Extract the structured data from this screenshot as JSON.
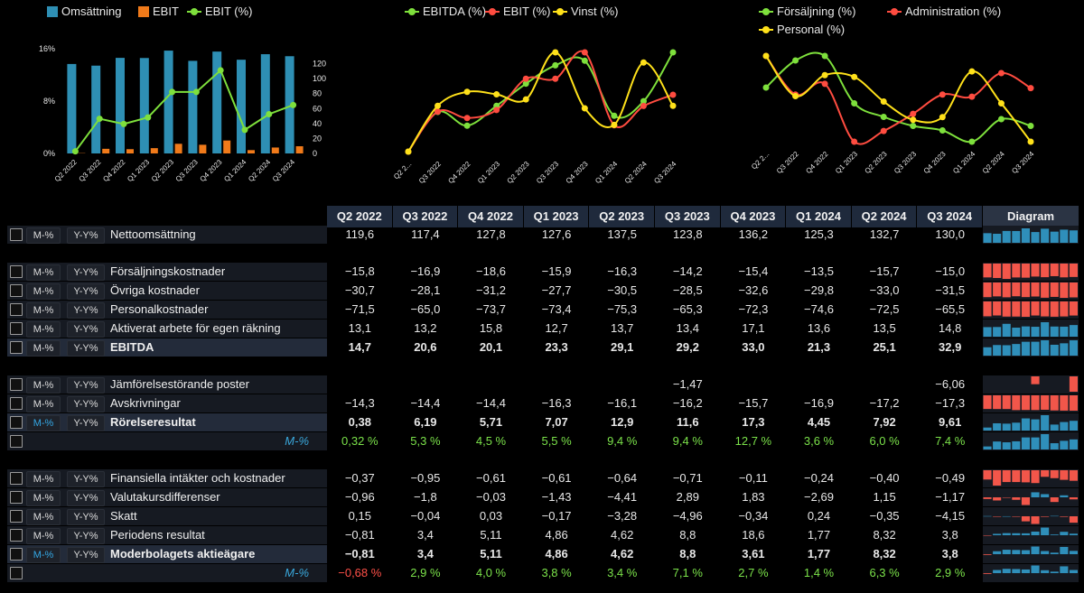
{
  "colors": {
    "blue": "#2e8fb4",
    "orange": "#f07a1a",
    "green": "#7ee03c",
    "red": "#ff4c40",
    "yellow": "#ffe11a",
    "bg": "#000000"
  },
  "chart_data": [
    {
      "type": "bar",
      "title": "",
      "categories": [
        "Q2 2022",
        "Q3 2022",
        "Q4 2022",
        "Q1 2023",
        "Q2 2023",
        "Q3 2023",
        "Q4 2023",
        "Q1 2024",
        "Q2 2024",
        "Q3 2024"
      ],
      "series": [
        {
          "name": "Omsättning",
          "axis": "right",
          "values": [
            119.6,
            117.4,
            127.8,
            127.6,
            137.5,
            123.8,
            136.2,
            125.3,
            132.7,
            130.0
          ]
        },
        {
          "name": "EBIT",
          "axis": "right",
          "values": [
            0.38,
            6.19,
            5.71,
            7.07,
            12.9,
            11.6,
            17.3,
            4.45,
            7.92,
            9.61
          ]
        },
        {
          "name": "EBIT (%)",
          "type": "line",
          "axis": "left",
          "values": [
            0.32,
            5.3,
            4.5,
            5.5,
            9.4,
            9.4,
            12.7,
            3.6,
            6.0,
            7.4
          ]
        }
      ],
      "y_left_ticks": [
        "0%",
        "8%",
        "16%"
      ],
      "y_left_range": [
        0,
        16
      ],
      "y_right_ticks": [
        "0",
        "20",
        "40",
        "60",
        "80",
        "100",
        "120"
      ],
      "y_right_range": [
        0,
        140
      ]
    },
    {
      "type": "line",
      "title": "",
      "categories": [
        "Q2 2022",
        "Q3 2022",
        "Q4 2022",
        "Q1 2023",
        "Q2 2023",
        "Q3 2023",
        "Q4 2023",
        "Q1 2024",
        "Q2 2024",
        "Q3 2024"
      ],
      "series": [
        {
          "name": "EBITDA (%)",
          "values": [
            12.3,
            17.5,
            15.7,
            18.3,
            21.2,
            23.6,
            24.2,
            17.0,
            18.9,
            25.3
          ]
        },
        {
          "name": "EBIT (%)",
          "values": [
            0.3,
            5.3,
            4.5,
            5.5,
            9.4,
            9.4,
            12.7,
            3.6,
            6.0,
            7.4
          ]
        },
        {
          "name": "Vinst (%)",
          "values": [
            -0.7,
            2.9,
            4.0,
            3.8,
            3.4,
            7.1,
            2.7,
            1.4,
            6.3,
            2.9
          ]
        }
      ]
    },
    {
      "type": "line",
      "title": "",
      "categories": [
        "Q2 2022",
        "Q3 2022",
        "Q4 2022",
        "Q1 2023",
        "Q2 2023",
        "Q3 2023",
        "Q4 2023",
        "Q1 2024",
        "Q2 2024",
        "Q3 2024"
      ],
      "series": [
        {
          "name": "Försäljning (%)",
          "values": [
            13.2,
            14.4,
            14.6,
            12.5,
            11.9,
            11.5,
            11.3,
            10.8,
            11.8,
            11.5
          ]
        },
        {
          "name": "Administration (%)",
          "values": [
            25.7,
            23.9,
            24.4,
            21.7,
            22.2,
            23.0,
            23.9,
            23.8,
            24.9,
            24.2
          ]
        },
        {
          "name": "Personal (%)",
          "values": [
            59.8,
            55.4,
            57.7,
            57.5,
            54.8,
            52.8,
            53.1,
            58.1,
            54.6,
            50.4
          ]
        }
      ]
    }
  ],
  "legends": {
    "chart1": [
      "Omsättning",
      "EBIT",
      "EBIT (%)"
    ],
    "chart2": [
      "EBITDA (%)",
      "EBIT (%)",
      "Vinst (%)"
    ],
    "chart3": [
      "Försäljning (%)",
      "Administration (%)",
      "Personal (%)"
    ]
  },
  "chart_x_labels": {
    "chart1": [
      "Q2 2022",
      "Q3 2022",
      "Q4 2022",
      "Q1 2023",
      "Q2 2023",
      "Q3 2023",
      "Q4 2023",
      "Q1 2024",
      "Q2 2024",
      "Q3 2024"
    ],
    "chart2": [
      "Q2 2...",
      "Q3 2022",
      "Q4 2022",
      "Q1 2023",
      "Q2 2023",
      "Q3 2023",
      "Q4 2023",
      "Q1 2024",
      "Q2 2024",
      "Q3 2024"
    ],
    "chart3": [
      "Q2 2...",
      "Q3 2022",
      "Q4 2022",
      "Q1 2023",
      "Q2 2023",
      "Q3 2023",
      "Q4 2023",
      "Q1 2024",
      "Q2 2024",
      "Q3 2024"
    ]
  },
  "table": {
    "headers": [
      "Q2 2022",
      "Q3 2022",
      "Q4 2022",
      "Q1 2023",
      "Q2 2023",
      "Q3 2023",
      "Q4 2023",
      "Q1 2024",
      "Q2 2024",
      "Q3 2024"
    ],
    "diagram_header": "Diagram",
    "m_label": "M-%",
    "y_label": "Y-Y%",
    "rows": [
      {
        "name": "Nettoomsättning",
        "bold": false,
        "kind": "data",
        "values": [
          "119,6",
          "117,4",
          "127,8",
          "127,6",
          "137,5",
          "123,8",
          "136,2",
          "125,3",
          "132,7",
          "130,0"
        ],
        "num": [
          119.6,
          117.4,
          127.8,
          127.6,
          137.5,
          123.8,
          136.2,
          125.3,
          132.7,
          130.0
        ]
      },
      {
        "kind": "gap"
      },
      {
        "name": "Försäljningskostnader",
        "bold": false,
        "kind": "data",
        "values": [
          "−15,8",
          "−16,9",
          "−18,6",
          "−15,9",
          "−16,3",
          "−14,2",
          "−15,4",
          "−13,5",
          "−15,7",
          "−15,0"
        ],
        "num": [
          -15.8,
          -16.9,
          -18.6,
          -15.9,
          -16.3,
          -14.2,
          -15.4,
          -13.5,
          -15.7,
          -15.0
        ]
      },
      {
        "name": "Övriga kostnader",
        "bold": false,
        "kind": "data",
        "values": [
          "−30,7",
          "−28,1",
          "−31,2",
          "−27,7",
          "−30,5",
          "−28,5",
          "−32,6",
          "−29,8",
          "−33,0",
          "−31,5"
        ],
        "num": [
          -30.7,
          -28.1,
          -31.2,
          -27.7,
          -30.5,
          -28.5,
          -32.6,
          -29.8,
          -33.0,
          -31.5
        ]
      },
      {
        "name": "Personalkostnader",
        "bold": false,
        "kind": "data",
        "values": [
          "−71,5",
          "−65,0",
          "−73,7",
          "−73,4",
          "−75,3",
          "−65,3",
          "−72,3",
          "−74,6",
          "−72,5",
          "−65,5"
        ],
        "num": [
          -71.5,
          -65.0,
          -73.7,
          -73.4,
          -75.3,
          -65.3,
          -72.3,
          -74.6,
          -72.5,
          -65.5
        ]
      },
      {
        "name": "Aktiverat arbete för egen räkning",
        "bold": false,
        "kind": "data",
        "values": [
          "13,1",
          "13,2",
          "15,8",
          "12,7",
          "13,7",
          "13,4",
          "17,1",
          "13,6",
          "13,5",
          "14,8"
        ],
        "num": [
          13.1,
          13.2,
          15.8,
          12.7,
          13.7,
          13.4,
          17.1,
          13.6,
          13.5,
          14.8
        ]
      },
      {
        "name": "EBITDA",
        "bold": true,
        "kind": "data",
        "values": [
          "14,7",
          "20,6",
          "20,1",
          "23,3",
          "29,1",
          "29,2",
          "33,0",
          "21,3",
          "25,1",
          "32,9"
        ],
        "num": [
          14.7,
          20.6,
          20.1,
          23.3,
          29.1,
          29.2,
          33.0,
          21.3,
          25.1,
          32.9
        ]
      },
      {
        "kind": "gap"
      },
      {
        "name": "Jämförelsestörande poster",
        "bold": false,
        "kind": "data",
        "values": [
          "",
          "",
          "",
          "",
          "",
          "−1,47",
          "",
          "",
          "",
          "−6,06"
        ],
        "num": [
          0,
          0,
          0,
          0,
          0,
          -1.47,
          0,
          0,
          0,
          -6.06
        ]
      },
      {
        "name": "Avskrivningar",
        "bold": false,
        "kind": "data",
        "values": [
          "−14,3",
          "−14,4",
          "−14,4",
          "−16,3",
          "−16,1",
          "−16,2",
          "−15,7",
          "−16,9",
          "−17,2",
          "−17,3"
        ],
        "num": [
          -14.3,
          -14.4,
          -14.4,
          -16.3,
          -16.1,
          -16.2,
          -15.7,
          -16.9,
          -17.2,
          -17.3
        ]
      },
      {
        "name": "Rörelseresultat",
        "bold": true,
        "mblue": true,
        "kind": "data",
        "values": [
          "0,38",
          "6,19",
          "5,71",
          "7,07",
          "12,9",
          "11,6",
          "17,3",
          "4,45",
          "7,92",
          "9,61"
        ],
        "num": [
          0.38,
          6.19,
          5.71,
          7.07,
          12.9,
          11.6,
          17.3,
          4.45,
          7.92,
          9.61
        ]
      },
      {
        "name": "M-%",
        "kind": "pct",
        "values": [
          "0,32 %",
          "5,3 %",
          "4,5 %",
          "5,5 %",
          "9,4 %",
          "9,4 %",
          "12,7 %",
          "3,6 %",
          "6,0 %",
          "7,4 %"
        ],
        "num": [
          0.32,
          5.3,
          4.5,
          5.5,
          9.4,
          9.4,
          12.7,
          3.6,
          6.0,
          7.4
        ]
      },
      {
        "kind": "gap"
      },
      {
        "name": "Finansiella intäkter och kostnader",
        "bold": false,
        "kind": "data",
        "values": [
          "−0,37",
          "−0,95",
          "−0,61",
          "−0,61",
          "−0,64",
          "−0,71",
          "−0,11",
          "−0,24",
          "−0,40",
          "−0,49"
        ],
        "num": [
          -0.37,
          -0.95,
          -0.61,
          -0.61,
          -0.64,
          -0.71,
          -0.11,
          -0.24,
          -0.4,
          -0.49
        ]
      },
      {
        "name": "Valutakursdifferenser",
        "bold": false,
        "kind": "data",
        "values": [
          "−0,96",
          "−1,8",
          "−0,03",
          "−1,43",
          "−4,41",
          "2,89",
          "1,83",
          "−2,69",
          "1,15",
          "−1,17"
        ],
        "num": [
          -0.96,
          -1.8,
          -0.03,
          -1.43,
          -4.41,
          2.89,
          1.83,
          -2.69,
          1.15,
          -1.17
        ]
      },
      {
        "name": "Skatt",
        "bold": false,
        "kind": "data",
        "values": [
          "0,15",
          "−0,04",
          "0,03",
          "−0,17",
          "−3,28",
          "−4,96",
          "−0,34",
          "0,24",
          "−0,35",
          "−4,15"
        ],
        "num": [
          0.15,
          -0.04,
          0.03,
          -0.17,
          -3.28,
          -4.96,
          -0.34,
          0.24,
          -0.35,
          -4.15
        ]
      },
      {
        "name": "Periodens resultat",
        "bold": false,
        "kind": "data",
        "values": [
          "−0,81",
          "3,4",
          "5,11",
          "4,86",
          "4,62",
          "8,8",
          "18,6",
          "1,77",
          "8,32",
          "3,8"
        ],
        "num": [
          -0.81,
          3.4,
          5.11,
          4.86,
          4.62,
          8.8,
          18.6,
          1.77,
          8.32,
          3.8
        ]
      },
      {
        "name": "Moderbolagets aktieägare",
        "bold": true,
        "mblue": true,
        "kind": "data",
        "values": [
          "−0,81",
          "3,4",
          "5,11",
          "4,86",
          "4,62",
          "8,8",
          "3,61",
          "1,77",
          "8,32",
          "3,8"
        ],
        "num": [
          -0.81,
          3.4,
          5.11,
          4.86,
          4.62,
          8.8,
          3.61,
          1.77,
          8.32,
          3.8
        ]
      },
      {
        "name": "M-%",
        "kind": "pct",
        "values": [
          "−0,68 %",
          "2,9 %",
          "4,0 %",
          "3,8 %",
          "3,4 %",
          "7,1 %",
          "2,7 %",
          "1,4 %",
          "6,3 %",
          "2,9 %"
        ],
        "num": [
          -0.68,
          2.9,
          4.0,
          3.8,
          3.4,
          7.1,
          2.7,
          1.4,
          6.3,
          2.9
        ]
      }
    ]
  }
}
